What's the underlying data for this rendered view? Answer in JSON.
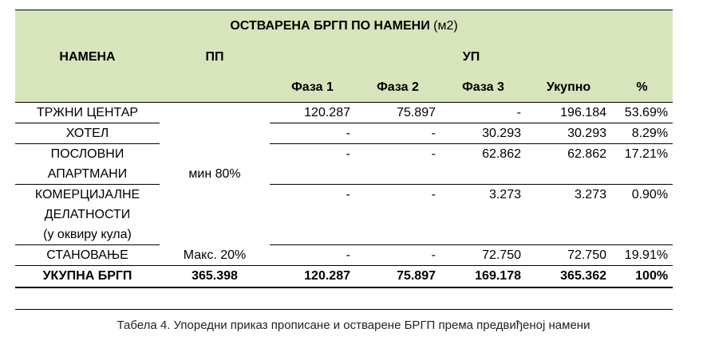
{
  "title_bold": "ОСТВАРЕНА БРГП ПО НАМЕНИ",
  "title_unit": "(м2)",
  "headers": {
    "namena": "НАМЕНА",
    "pp": "ПП",
    "up": "УП",
    "faza1": "Фаза 1",
    "faza2": "Фаза 2",
    "faza3": "Фаза 3",
    "ukupno": "Укупно",
    "percent": "%"
  },
  "pp_min": "мин 80%",
  "rows": [
    {
      "namena": "ТРЖНИ ЦЕНТАР",
      "f1": "120.287",
      "f2": "75.897",
      "f3": "-",
      "ukupno": "196.184",
      "pct": "53.69%"
    },
    {
      "namena": "ХОТЕЛ",
      "f1": "-",
      "f2": "-",
      "f3": "30.293",
      "ukupno": "30.293",
      "pct": "8.29%"
    },
    {
      "namena_l1": "ПОСЛОВНИ",
      "namena_l2": "АПАРТМАНИ",
      "f1": "-",
      "f2": "-",
      "f3": "62.862",
      "ukupno": "62.862",
      "pct": "17.21%"
    },
    {
      "namena_l1": "КОМЕРЦИЈАЛНЕ",
      "namena_l2": "ДЕЛАТНОСТИ",
      "namena_l3": "(у оквиру кула)",
      "f1": "-",
      "f2": "-",
      "f3": "3.273",
      "ukupno": "3.273",
      "pct": "0.90%"
    },
    {
      "namena": "СТАНОВАЊЕ",
      "pp": "Макс. 20%",
      "f1": "-",
      "f2": "-",
      "f3": "72.750",
      "ukupno": "72.750",
      "pct": "19.91%"
    }
  ],
  "total": {
    "namena": "УКУПНА БРГП",
    "pp": "365.398",
    "f1": "120.287",
    "f2": "75.897",
    "f3": "169.178",
    "ukupno": "365.362",
    "pct": "100%"
  },
  "caption": "Табела 4. Упоредни приказ прописане и остварене БРГП према предвиђеној намени"
}
